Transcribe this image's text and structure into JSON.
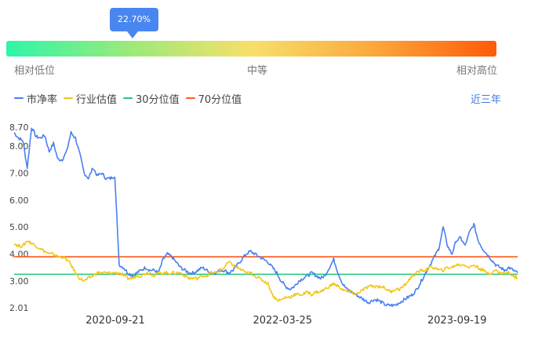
{
  "indicator": {
    "percentile_label": "22.70%",
    "percentile_value": 0.227
  },
  "scale": {
    "left_label": "相对低位",
    "mid_label": "中等",
    "right_label": "相对高位"
  },
  "legend": {
    "items": [
      {
        "label": "市净率",
        "color": "#4a7ff0"
      },
      {
        "label": "行业估值",
        "color": "#f5c518"
      },
      {
        "label": "30分位值",
        "color": "#1ec87a"
      },
      {
        "label": "70分位值",
        "color": "#ff5a1f"
      }
    ]
  },
  "period_link": "近三年",
  "colors": {
    "pb": "#4a7ff0",
    "industry": "#f5c518",
    "p30": "#1ec87a",
    "p70": "#ff5a1f",
    "accent": "#4a86f0"
  },
  "chart_data": {
    "type": "line",
    "x_ticks": [
      "2020-09-21",
      "2022-03-25",
      "2023-09-19"
    ],
    "y_ticks": [
      "8.70",
      "8.00",
      "7.00",
      "6.00",
      "5.00",
      "4.00",
      "3.00",
      "2.01"
    ],
    "ylim": [
      2.01,
      8.7
    ],
    "threshold_30": 3.25,
    "threshold_70": 3.9,
    "series": [
      {
        "name": "市净率",
        "values": [
          8.5,
          8.3,
          8.2,
          7.2,
          8.7,
          8.35,
          8.3,
          8.4,
          7.8,
          8.1,
          7.5,
          7.5,
          7.8,
          8.5,
          8.3,
          7.7,
          7.0,
          6.8,
          7.2,
          6.9,
          7.0,
          6.8,
          6.8,
          6.9,
          3.6,
          3.5,
          3.3,
          3.2,
          3.3,
          3.4,
          3.5,
          3.4,
          3.4,
          3.3,
          3.8,
          4.0,
          3.9,
          3.7,
          3.5,
          3.4,
          3.3,
          3.3,
          3.4,
          3.5,
          3.4,
          3.3,
          3.3,
          3.4,
          3.4,
          3.3,
          3.4,
          3.6,
          3.8,
          4.0,
          4.1,
          4.0,
          3.9,
          3.8,
          3.7,
          3.5,
          3.3,
          3.0,
          2.8,
          2.7,
          2.8,
          3.0,
          3.1,
          3.2,
          3.3,
          3.2,
          3.1,
          3.2,
          3.5,
          3.8,
          3.3,
          2.9,
          2.7,
          2.6,
          2.5,
          2.4,
          2.3,
          2.2,
          2.3,
          2.3,
          2.2,
          2.1,
          2.1,
          2.1,
          2.2,
          2.3,
          2.4,
          2.5,
          2.7,
          3.0,
          3.3,
          3.6,
          3.9,
          4.2,
          5.0,
          4.3,
          4.0,
          4.5,
          4.6,
          4.3,
          4.8,
          5.1,
          4.5,
          4.2,
          4.0,
          3.8,
          3.6,
          3.5,
          3.4,
          3.5,
          3.4,
          3.3
        ]
      },
      {
        "name": "行业估值",
        "values": [
          4.4,
          4.3,
          4.3,
          4.5,
          4.4,
          4.3,
          4.2,
          4.1,
          4.0,
          4.0,
          3.9,
          3.9,
          3.8,
          3.6,
          3.3,
          3.1,
          3.0,
          3.1,
          3.2,
          3.3,
          3.3,
          3.3,
          3.3,
          3.3,
          3.3,
          3.2,
          3.1,
          3.1,
          3.2,
          3.2,
          3.3,
          3.3,
          3.2,
          3.3,
          3.3,
          3.3,
          3.3,
          3.3,
          3.3,
          3.2,
          3.1,
          3.1,
          3.1,
          3.2,
          3.2,
          3.3,
          3.3,
          3.4,
          3.5,
          3.7,
          3.6,
          3.5,
          3.4,
          3.3,
          3.3,
          3.2,
          3.1,
          3.0,
          2.9,
          2.5,
          2.3,
          2.3,
          2.4,
          2.4,
          2.5,
          2.5,
          2.5,
          2.6,
          2.5,
          2.6,
          2.6,
          2.7,
          2.8,
          2.9,
          2.8,
          2.7,
          2.6,
          2.6,
          2.5,
          2.6,
          2.7,
          2.8,
          2.8,
          2.8,
          2.8,
          2.7,
          2.6,
          2.7,
          2.7,
          2.8,
          3.0,
          3.2,
          3.3,
          3.4,
          3.4,
          3.5,
          3.5,
          3.4,
          3.4,
          3.5,
          3.5,
          3.6,
          3.6,
          3.6,
          3.5,
          3.6,
          3.5,
          3.4,
          3.3,
          3.3,
          3.4,
          3.3,
          3.3,
          3.3,
          3.2,
          3.1
        ]
      }
    ]
  }
}
